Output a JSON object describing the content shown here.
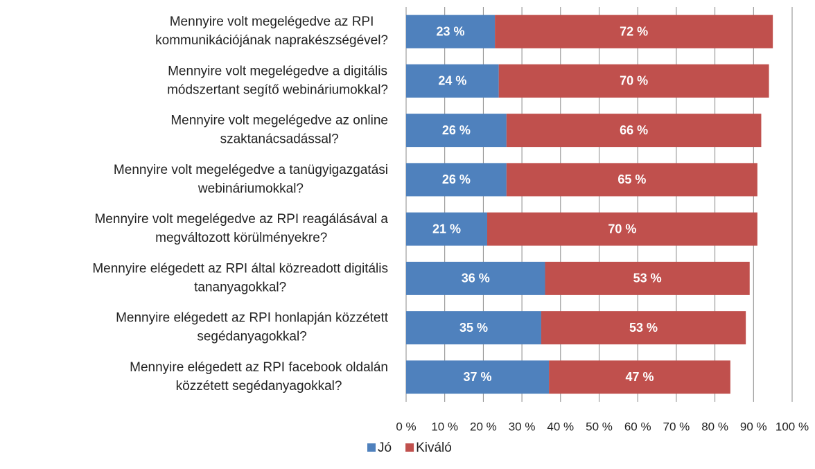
{
  "chart_data": {
    "type": "stacked-bar-horizontal",
    "categories": [
      [
        "Mennyire volt megelégedve az RPI",
        "kommunikációjának naprakészségével?"
      ],
      [
        "Mennyire volt megelégedve a digitális",
        "módszertant segítő webináriumokkal?"
      ],
      [
        "Mennyire volt megelégedve az online",
        "szaktanácsadással?"
      ],
      [
        "Mennyire volt megelégedve a tanügyigazgatási",
        "webináriumokkal?"
      ],
      [
        "Mennyire volt megelégedve az RPI reagálásával a",
        "megváltozott körülményekre?"
      ],
      [
        "Mennyire elégedett az RPI által közreadott digitális",
        "tananyagokkal?"
      ],
      [
        "Mennyire elégedett az RPI honlapján közzétett",
        "segédanyagokkal?"
      ],
      [
        "Mennyire elégedett az RPI facebook oldalán",
        "közzétett segédanyagokkal?"
      ]
    ],
    "series": [
      {
        "name": "Jó",
        "color": "#4f81bd",
        "values": [
          23,
          24,
          26,
          26,
          21,
          36,
          35,
          37
        ],
        "value_labels": [
          "23 %",
          "24 %",
          "26 %",
          "26 %",
          "21 %",
          "36 %",
          "35 %",
          "37 %"
        ]
      },
      {
        "name": "Kiváló",
        "color": "#c0504d",
        "values": [
          72,
          70,
          66,
          65,
          70,
          53,
          53,
          47
        ],
        "value_labels": [
          "72 %",
          "70 %",
          "66 %",
          "65 %",
          "70 %",
          "53 %",
          "53 %",
          "47 %"
        ]
      }
    ],
    "xlim": [
      0,
      100
    ],
    "xticks": [
      {
        "value": 0,
        "label": "0 %"
      },
      {
        "value": 10,
        "label": "10 %"
      },
      {
        "value": 20,
        "label": "20 %"
      },
      {
        "value": 30,
        "label": "30 %"
      },
      {
        "value": 40,
        "label": "40 %"
      },
      {
        "value": 50,
        "label": "50 %"
      },
      {
        "value": 60,
        "label": "60 %"
      },
      {
        "value": 70,
        "label": "70 %"
      },
      {
        "value": 80,
        "label": "80 %"
      },
      {
        "value": 90,
        "label": "90 %"
      },
      {
        "value": 100,
        "label": "100 %"
      }
    ],
    "grid": true,
    "legend": "bottom"
  }
}
